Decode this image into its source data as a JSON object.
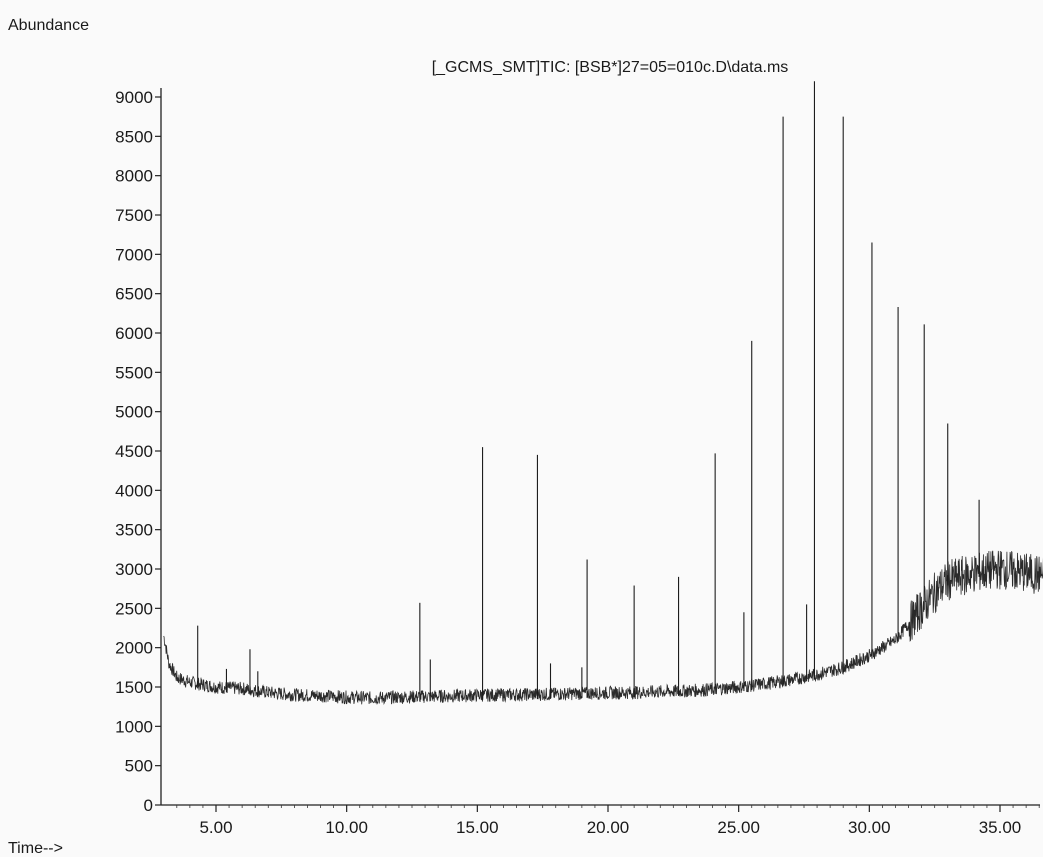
{
  "chart_data": {
    "type": "line",
    "title": "[_GCMS_SMT]TIC: [BSB*]27=05=010c.D\\data.ms",
    "ylabel": "Abundance",
    "xlabel": "Time-->",
    "xlim": [
      3.0,
      37.0
    ],
    "ylim": [
      0,
      9200
    ],
    "x_ticks": [
      5,
      10,
      15,
      20,
      25,
      30,
      35
    ],
    "x_tick_labels": [
      "5.00",
      "10.00",
      "15.00",
      "20.00",
      "25.00",
      "30.00",
      "35.00"
    ],
    "y_ticks": [
      0,
      500,
      1000,
      1500,
      2000,
      2500,
      3000,
      3500,
      4000,
      4500,
      5000,
      5500,
      6000,
      6500,
      7000,
      7500,
      8000,
      8500,
      9000
    ],
    "y_tick_labels": [
      "0",
      "500",
      "1000",
      "1500",
      "2000",
      "2500",
      "3000",
      "3500",
      "4000",
      "4500",
      "5000",
      "5500",
      "6000",
      "6500",
      "7000",
      "7500",
      "8000",
      "8500",
      "9000"
    ],
    "grid": false,
    "color": "#222222",
    "baseline": [
      [
        3.0,
        2150
      ],
      [
        3.2,
        1800
      ],
      [
        3.5,
        1620
      ],
      [
        4.0,
        1560
      ],
      [
        5.0,
        1500
      ],
      [
        6.0,
        1480
      ],
      [
        7.0,
        1430
      ],
      [
        8.0,
        1400
      ],
      [
        9.0,
        1390
      ],
      [
        10.0,
        1370
      ],
      [
        11.0,
        1360
      ],
      [
        12.0,
        1370
      ],
      [
        13.0,
        1380
      ],
      [
        14.0,
        1385
      ],
      [
        15.0,
        1395
      ],
      [
        16.0,
        1400
      ],
      [
        17.0,
        1405
      ],
      [
        18.0,
        1410
      ],
      [
        19.0,
        1420
      ],
      [
        20.0,
        1425
      ],
      [
        21.0,
        1430
      ],
      [
        22.0,
        1440
      ],
      [
        23.0,
        1450
      ],
      [
        24.0,
        1470
      ],
      [
        25.0,
        1500
      ],
      [
        26.0,
        1540
      ],
      [
        27.0,
        1590
      ],
      [
        28.0,
        1660
      ],
      [
        29.0,
        1750
      ],
      [
        30.0,
        1900
      ],
      [
        31.0,
        2100
      ],
      [
        31.5,
        2300
      ],
      [
        32.0,
        2500
      ],
      [
        32.5,
        2700
      ],
      [
        33.0,
        2850
      ],
      [
        34.0,
        2950
      ],
      [
        35.0,
        3000
      ],
      [
        36.0,
        2950
      ],
      [
        37.0,
        2900
      ]
    ],
    "peaks": [
      {
        "x": 4.3,
        "y": 2280
      },
      {
        "x": 5.4,
        "y": 1730
      },
      {
        "x": 6.3,
        "y": 1980
      },
      {
        "x": 6.6,
        "y": 1700
      },
      {
        "x": 12.8,
        "y": 2570
      },
      {
        "x": 13.2,
        "y": 1850
      },
      {
        "x": 15.2,
        "y": 4550
      },
      {
        "x": 17.3,
        "y": 4450
      },
      {
        "x": 17.8,
        "y": 1800
      },
      {
        "x": 19.0,
        "y": 1750
      },
      {
        "x": 19.2,
        "y": 3120
      },
      {
        "x": 21.0,
        "y": 2790
      },
      {
        "x": 22.7,
        "y": 2900
      },
      {
        "x": 24.1,
        "y": 4470
      },
      {
        "x": 25.2,
        "y": 2450
      },
      {
        "x": 25.5,
        "y": 5900
      },
      {
        "x": 26.7,
        "y": 8750
      },
      {
        "x": 27.6,
        "y": 2550
      },
      {
        "x": 27.9,
        "y": 9200
      },
      {
        "x": 29.0,
        "y": 8750
      },
      {
        "x": 30.1,
        "y": 7150
      },
      {
        "x": 31.1,
        "y": 6330
      },
      {
        "x": 32.1,
        "y": 6110
      },
      {
        "x": 33.0,
        "y": 4850
      },
      {
        "x": 34.2,
        "y": 3880
      }
    ]
  }
}
